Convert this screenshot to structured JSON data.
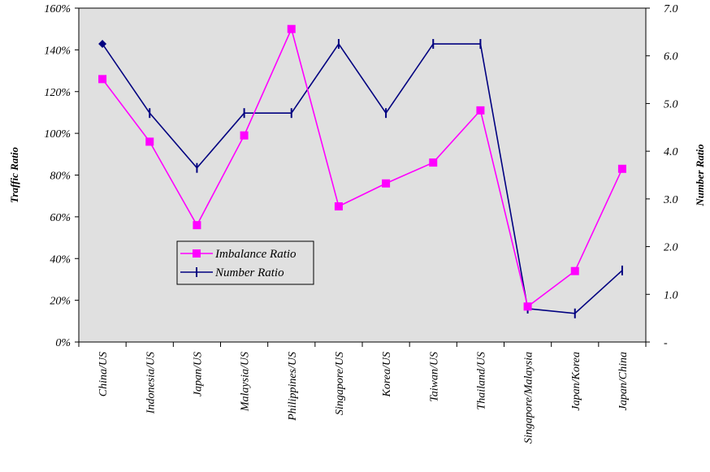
{
  "chart_data": {
    "type": "line",
    "categories": [
      "China/US",
      "Indonesia/US",
      "Japan/US",
      "Malaysia/US",
      "Philippines/US",
      "Singapore/US",
      "Korea/US",
      "Taiwan/US",
      "Thailand/US",
      "Singapore/Malaysia",
      "Japan/Korea",
      "Japan/China"
    ],
    "series": [
      {
        "name": "Imbalance Ratio",
        "axis": "left",
        "color": "#ff00ff",
        "marker": "square",
        "values": [
          126,
          96,
          56,
          99,
          150,
          65,
          76,
          86,
          111,
          17,
          34,
          83
        ]
      },
      {
        "name": "Number Ratio",
        "axis": "right",
        "color": "#000080",
        "marker": "vertical-tick",
        "values": [
          6.25,
          4.8,
          3.65,
          4.8,
          4.8,
          6.25,
          4.8,
          6.25,
          6.25,
          0.7,
          0.6,
          1.5
        ]
      }
    ],
    "ylabel": "Traffic Ratio",
    "y2label": "Number Ratio",
    "ylim": [
      0,
      160
    ],
    "y2lim": [
      0,
      7
    ],
    "yticks": [
      "0%",
      "20%",
      "40%",
      "60%",
      "80%",
      "100%",
      "120%",
      "140%",
      "160%"
    ],
    "y2ticks": [
      "-",
      "1.0",
      "2.0",
      "3.0",
      "4.0",
      "5.0",
      "6.0",
      "7.0"
    ],
    "plot_background": "#e0e0e0",
    "grid": false,
    "legend_placement": "center-left"
  }
}
